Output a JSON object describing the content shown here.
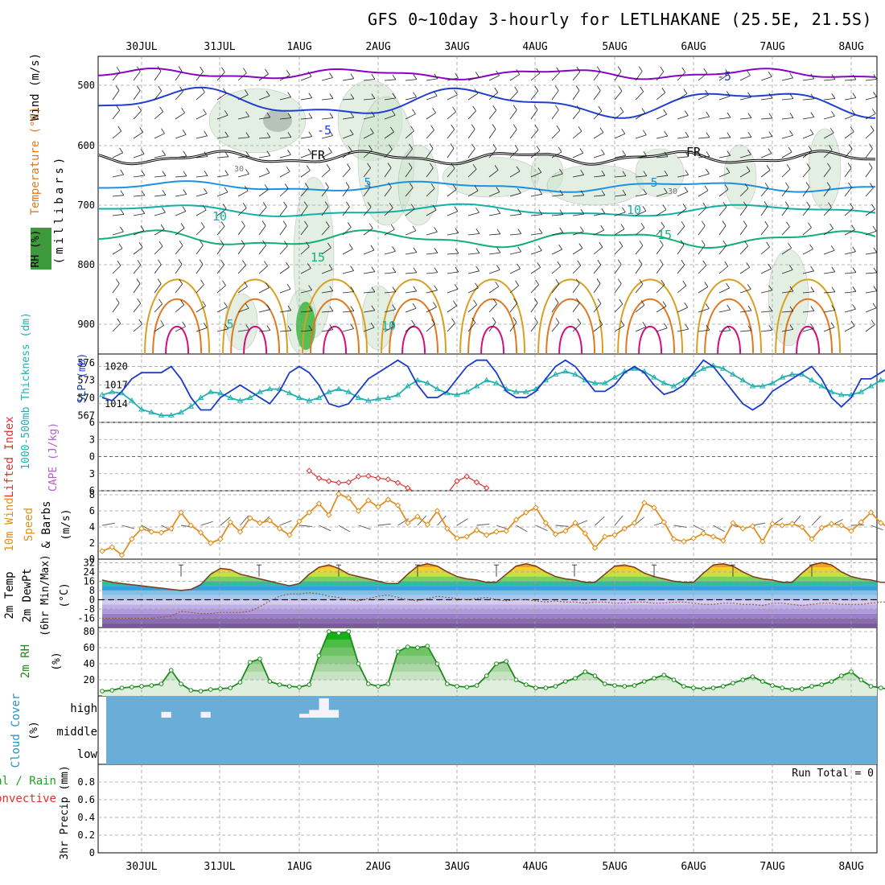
{
  "title": "GFS 0~10day 3-hourly for LETLHAKANE (25.5E, 21.5S)",
  "dates": [
    "30JUL",
    "31JUL",
    "1AUG",
    "2AUG",
    "3AUG",
    "4AUG",
    "5AUG",
    "6AUG",
    "7AUG",
    "8AUG"
  ],
  "colors": {
    "grid": "#a0a0a0",
    "temp_cold": "#8b00c8",
    "temp_blue": "#1f3fd0",
    "temp_lblue": "#1e90e0",
    "temp_teal": "#13b0a8",
    "temp_green": "#12b070",
    "temp_orange1": "#d8a020",
    "temp_orange2": "#e07820",
    "temp_magenta": "#d0107a",
    "slp": "#1a3cc8",
    "thickness": "#20b0b0",
    "lifted": "#e03030",
    "wind": "#e09020",
    "barb": "#555555",
    "cloud_bg": "#6aaed8",
    "cloud_fill": "#f4f2f8",
    "rh": "#1b8a1b"
  },
  "panels": {
    "upper": {
      "ylabel_parts": [
        "RH (%)",
        "Temperature (°C)",
        "Wind (m/s)"
      ],
      "y_axis_label": "(millibars)",
      "pressure_ticks": [
        "500",
        "600",
        "700",
        "800",
        "900"
      ],
      "contour_labels": [
        "-5",
        "-5",
        "5",
        "5",
        "FR",
        "FR",
        "10",
        "10",
        "15",
        "15",
        "30",
        "30",
        "10",
        "5"
      ]
    },
    "slp": {
      "ylabel_left": "1000-500mb Thickness (dm)",
      "ylabel_right": "SLP (mb)",
      "left_ticks": [
        "576",
        "573",
        "570",
        "567"
      ],
      "right_ticks": [
        "1020",
        "1017",
        "1014"
      ]
    },
    "lifted": {
      "ylabel_a": "Lifted Index",
      "ylabel_b": "CAPE (J/kg)",
      "ticks": [
        "6",
        "3",
        "0",
        "3",
        "6"
      ]
    },
    "wind10": {
      "ylabel_a": "10m Wind",
      "ylabel_b": "Speed",
      "ylabel_c": "& Barbs",
      "ylabel_unit": "(m/s)",
      "ticks": [
        "8",
        "6",
        "4",
        "2",
        "0"
      ]
    },
    "temp2m": {
      "ylabel_a": "2m Temp",
      "ylabel_b": "2m DewPt",
      "ylabel_c": "(6hr Min/Max)",
      "ylabel_unit": "(°C)",
      "ticks": [
        "32",
        "24",
        "16",
        "8",
        "0",
        "-8",
        "-16"
      ]
    },
    "rh2m": {
      "ylabel_a": "2m RH",
      "ylabel_unit": "(%)",
      "ticks": [
        "80",
        "60",
        "40",
        "20"
      ]
    },
    "cloud": {
      "ylabel_a": "Cloud Cover",
      "ylabel_unit": "(%)",
      "levels": [
        "high",
        "middle",
        "low"
      ]
    },
    "precip": {
      "ylabel_a": "Total / Rain",
      "ylabel_b": "Convective",
      "ylabel_c": "3hr Precip (mm)",
      "ticks": [
        "0.8",
        "0.6",
        "0.4",
        "0.2",
        "0"
      ],
      "run_total": "Run Total = 0"
    }
  },
  "chart_data": [
    {
      "type": "line",
      "title": "SLP and 1000-500mb Thickness",
      "x_start": "29JUL 12Z",
      "x_step_hours": 3,
      "series": [
        {
          "name": "SLP (mb)",
          "axis": "right",
          "ylim": [
            1011,
            1022
          ],
          "values": [
            1015,
            1014.5,
            1016,
            1018,
            1019,
            1019,
            1019,
            1020,
            1018,
            1015,
            1013,
            1013,
            1015,
            1016,
            1017,
            1016,
            1015,
            1014,
            1016,
            1019,
            1020,
            1019,
            1017,
            1014,
            1013.5,
            1014,
            1016,
            1018,
            1019,
            1020,
            1021,
            1020,
            1017,
            1015,
            1015,
            1016,
            1018,
            1020,
            1021,
            1021,
            1019,
            1016,
            1015,
            1015,
            1016,
            1018,
            1020,
            1021,
            1020,
            1018,
            1016,
            1016,
            1017,
            1019,
            1020,
            1019,
            1017,
            1015.5,
            1016,
            1017,
            1019,
            1021,
            1020,
            1018,
            1016,
            1014,
            1013,
            1014,
            1016,
            1017,
            1018,
            1019,
            1020,
            1018,
            1015,
            1013.5,
            1015,
            1018,
            1018,
            1019,
            1020,
            1019,
            1016,
            1014,
            1015,
            1017,
            1019,
            1020,
            1019,
            1017,
            1015,
            1016,
            1017,
            1019,
            1018,
            1020,
            1021
          ]
        },
        {
          "name": "1000-500mb Thickness (dm)",
          "axis": "left",
          "ylim": [
            565.8,
            577.5
          ],
          "values": [
            570.5,
            571,
            570.8,
            569.5,
            568,
            567.5,
            567,
            567,
            567.5,
            568.5,
            570,
            571,
            570.8,
            570,
            569.5,
            570,
            571,
            571.5,
            571.5,
            570.8,
            570,
            569.5,
            570,
            571,
            571.5,
            571,
            570,
            569.5,
            569.8,
            570,
            570.5,
            572,
            573,
            572.5,
            571.5,
            570.8,
            570.5,
            571,
            572,
            573,
            572.5,
            571.5,
            571,
            571,
            571.5,
            573,
            574,
            574.5,
            574,
            573,
            572.5,
            572.5,
            573.5,
            574.5,
            575,
            574.5,
            573.5,
            572.5,
            572,
            573,
            574,
            575,
            575.5,
            575,
            574,
            573,
            572,
            572,
            572.5,
            573.5,
            574,
            574,
            573,
            572,
            571,
            570.5,
            570.5,
            571,
            572,
            573,
            573,
            572,
            571,
            570,
            569.8,
            570,
            570.2,
            571,
            572,
            573,
            573.5,
            573,
            572,
            571,
            570.8,
            570.8,
            571
          ]
        }
      ]
    },
    {
      "type": "line",
      "title": "Lifted Index",
      "x_start": "31JUL 21Z",
      "x_step_hours": 3,
      "ylim": [
        6,
        -6
      ],
      "values": [
        2.5,
        3.8,
        4.3,
        4.6,
        4.5,
        3.5,
        3.4,
        3.8,
        4.0,
        4.6,
        5.5,
        6.5,
        6.5,
        6.5,
        6.5,
        4.3,
        3.5,
        4.5,
        5.5
      ]
    },
    {
      "type": "line",
      "title": "10m Wind Speed",
      "x_start": "29JUL 12Z",
      "x_step_hours": 3,
      "ylim": [
        0,
        8.5
      ],
      "values": [
        1.0,
        1.5,
        0.5,
        2.5,
        3.8,
        3.4,
        3.3,
        3.8,
        5.8,
        4.2,
        3.3,
        2.0,
        2.5,
        4.6,
        3.4,
        5.1,
        4.5,
        4.8,
        3.8,
        3.0,
        4.7,
        5.8,
        6.9,
        5.5,
        8.1,
        7.6,
        6.0,
        7.3,
        6.5,
        7.4,
        6.7,
        4.5,
        5.3,
        4.3,
        6.0,
        3.8,
        2.6,
        2.8,
        3.6,
        3.0,
        3.4,
        3.5,
        4.9,
        5.8,
        6.4,
        4.5,
        3.1,
        3.5,
        4.5,
        3.2,
        1.4,
        2.8,
        3.0,
        3.8,
        4.5,
        7.0,
        6.4,
        4.6,
        2.5,
        2.2,
        2.6,
        3.2,
        2.8,
        2.3,
        4.5,
        3.8,
        4.1,
        2.2,
        4.4,
        4.2,
        4.4,
        4.0,
        2.5,
        3.9,
        4.4,
        4.2,
        3.5,
        4.6,
        5.8,
        4.5,
        3.8,
        3.5,
        2.8,
        2.6,
        4.8,
        6.4,
        4.6,
        3.8,
        3.3,
        5.3,
        6.4,
        6.8,
        5.6,
        4.2,
        4.7,
        7.2,
        6.8,
        6.0,
        4.6,
        5.4
      ]
    },
    {
      "type": "area",
      "title": "2m Temperature",
      "x_start": "29JUL 12Z",
      "x_step_hours": 3,
      "ylim": [
        -24,
        35
      ],
      "values": [
        17,
        15,
        14,
        13,
        12,
        11,
        10,
        9,
        8,
        9,
        13,
        22,
        27,
        26,
        22,
        20,
        18,
        16,
        14,
        12,
        14,
        22,
        28,
        30,
        27,
        22,
        20,
        18,
        16,
        14,
        14,
        22,
        29,
        31,
        29,
        24,
        20,
        18,
        17,
        15,
        15,
        22,
        29,
        31,
        29,
        24,
        20,
        18,
        17,
        15,
        15,
        22,
        29,
        30,
        28,
        23,
        20,
        18,
        16,
        15,
        15,
        23,
        30,
        31,
        29,
        24,
        20,
        18,
        17,
        15,
        15,
        23,
        30,
        32,
        30,
        24,
        20,
        18,
        17,
        15,
        15,
        22,
        29,
        30,
        28,
        24,
        20,
        18,
        17,
        15,
        14,
        22,
        29,
        31,
        29,
        24,
        19,
        17,
        15,
        13,
        13
      ]
    },
    {
      "type": "line",
      "title": "2m Dew Point",
      "x_start": "29JUL 12Z",
      "x_step_hours": 3,
      "ylim": [
        -24,
        35
      ],
      "values": [
        -16,
        -16,
        -16,
        -16,
        -16,
        -16,
        -15,
        -14,
        -10,
        -11,
        -12,
        -12,
        -11,
        -11,
        -11,
        -10,
        -6,
        -1,
        3,
        5,
        5,
        6,
        5,
        3,
        2,
        0,
        -1,
        1,
        3,
        4,
        2,
        0,
        -1,
        1,
        3,
        2,
        1,
        0,
        1,
        2,
        0,
        -1,
        0,
        0,
        -1,
        -2,
        -1,
        -2,
        -2,
        -3,
        -2,
        -2,
        -3,
        -3,
        -2,
        -2,
        -3,
        -3,
        -2,
        -2,
        -3,
        -4,
        -4,
        -3,
        -3,
        -4,
        -4,
        -5,
        -3,
        -3,
        -4,
        -5,
        -4,
        -3,
        -3,
        -4,
        -4,
        -4,
        -3,
        -2,
        -2,
        -3,
        -4,
        -5,
        -6,
        -6,
        -3,
        2,
        5,
        6,
        5,
        3,
        1,
        2,
        4,
        5,
        6,
        6,
        6,
        6
      ]
    },
    {
      "type": "area",
      "title": "2m RH",
      "x_start": "29JUL 12Z",
      "x_step_hours": 3,
      "ylim": [
        0,
        85
      ],
      "values": [
        6,
        7,
        10,
        11,
        12,
        13,
        15,
        32,
        15,
        7,
        6,
        8,
        9,
        10,
        17,
        42,
        46,
        18,
        14,
        12,
        11,
        14,
        50,
        80,
        78,
        80,
        40,
        15,
        12,
        15,
        55,
        61,
        60,
        62,
        40,
        15,
        12,
        11,
        13,
        25,
        40,
        43,
        20,
        14,
        10,
        10,
        12,
        18,
        22,
        30,
        25,
        15,
        13,
        12,
        13,
        18,
        22,
        26,
        20,
        12,
        10,
        9,
        10,
        12,
        16,
        20,
        24,
        18,
        13,
        10,
        8,
        9,
        12,
        14,
        18,
        25,
        30,
        20,
        12,
        10,
        8,
        10,
        15,
        25,
        68,
        73,
        32,
        14,
        13,
        30,
        55,
        62,
        61,
        62
      ]
    },
    {
      "type": "bar",
      "title": "Cloud Cover",
      "levels": [
        "high",
        "middle",
        "low"
      ],
      "values": [
        {
          "level": "high",
          "start": "30JUL 06Z",
          "end": "30JUL 09Z",
          "percent": 30
        },
        {
          "level": "high",
          "start": "30JUL 18Z",
          "end": "30JUL 21Z",
          "percent": 30
        },
        {
          "level": "high",
          "start": "1AUG 00Z",
          "end": "1AUG 03Z",
          "percent": 20
        },
        {
          "level": "high",
          "start": "1AUG 03Z",
          "end": "1AUG 12Z",
          "percent": 40
        },
        {
          "level": "high",
          "start": "1AUG 06Z",
          "end": "1AUG 09Z",
          "percent": 100
        }
      ]
    },
    {
      "type": "bar",
      "title": "3hr Precip",
      "ylim": [
        0,
        1.0
      ],
      "values": []
    }
  ]
}
